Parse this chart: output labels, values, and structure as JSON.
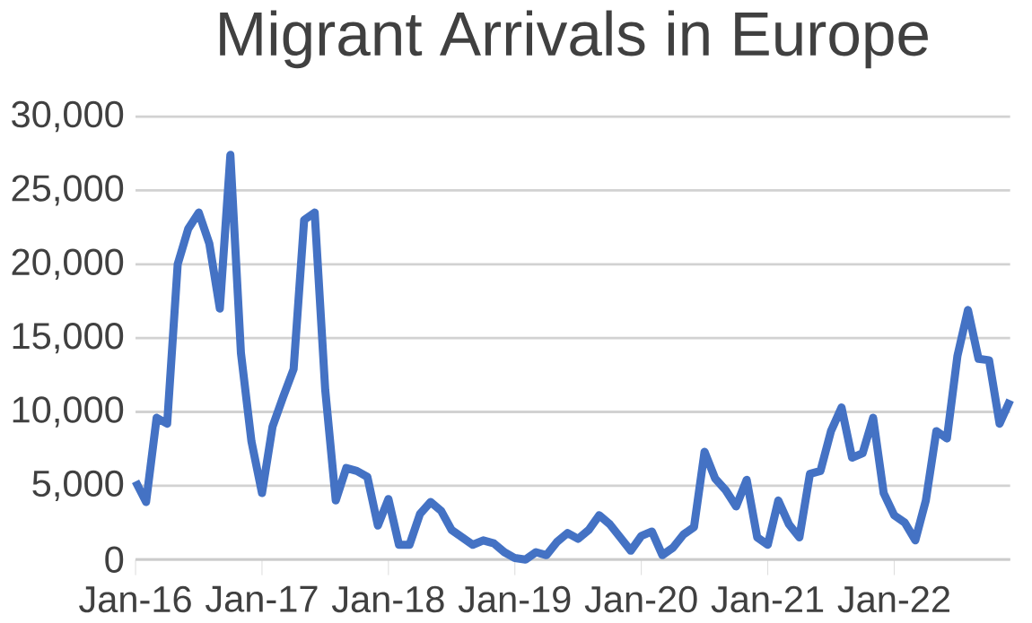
{
  "chart_data": {
    "type": "line",
    "title": "Migrant Arrivals in Europe",
    "categories": [
      "Jan-16",
      null,
      null,
      null,
      null,
      null,
      null,
      null,
      null,
      null,
      null,
      null,
      "Jan-17",
      null,
      null,
      null,
      null,
      null,
      null,
      null,
      null,
      null,
      null,
      null,
      "Jan-18",
      null,
      null,
      null,
      null,
      null,
      null,
      null,
      null,
      null,
      null,
      null,
      "Jan-19",
      null,
      null,
      null,
      null,
      null,
      null,
      null,
      null,
      null,
      null,
      null,
      "Jan-20",
      null,
      null,
      null,
      null,
      null,
      null,
      null,
      null,
      null,
      null,
      null,
      "Jan-21",
      null,
      null,
      null,
      null,
      null,
      null,
      null,
      null,
      null,
      null,
      null,
      "Jan-22",
      null,
      null,
      null,
      null,
      null,
      null,
      null,
      null,
      null,
      null,
      null
    ],
    "series": [
      {
        "color": "#4472c4",
        "values": [
          5300,
          3900,
          9600,
          9200,
          20000,
          22400,
          23500,
          21400,
          17000,
          27400,
          14000,
          8000,
          4500,
          9000,
          11000,
          12900,
          23000,
          23500,
          11500,
          4000,
          6200,
          6000,
          5600,
          2300,
          4100,
          1000,
          1000,
          3100,
          3900,
          3300,
          2000,
          1500,
          1000,
          1300,
          1100,
          500,
          100,
          0,
          500,
          300,
          1200,
          1800,
          1400,
          2000,
          3000,
          2400,
          1500,
          600,
          1600,
          1900,
          300,
          800,
          1700,
          2200,
          7300,
          5500,
          4700,
          3600,
          5400,
          1500,
          1000,
          4000,
          2400,
          1500,
          5800,
          6000,
          8700,
          10300,
          6900,
          7200,
          9600,
          4500,
          3000,
          2500,
          1300,
          4000,
          8700,
          8200,
          13800,
          16900,
          13600,
          13500,
          9200,
          10800
        ]
      }
    ],
    "ylim": [
      0,
      30000
    ],
    "yticks": [
      {
        "value": 0,
        "label": "0"
      },
      {
        "value": 5000,
        "label": "5,000"
      },
      {
        "value": 10000,
        "label": "10,000"
      },
      {
        "value": 15000,
        "label": "15,000"
      },
      {
        "value": 20000,
        "label": "20,000"
      },
      {
        "value": 25000,
        "label": "25,000"
      },
      {
        "value": 30000,
        "label": "30,000"
      }
    ],
    "grid": "y",
    "marker": "none",
    "line_style": "solid"
  }
}
